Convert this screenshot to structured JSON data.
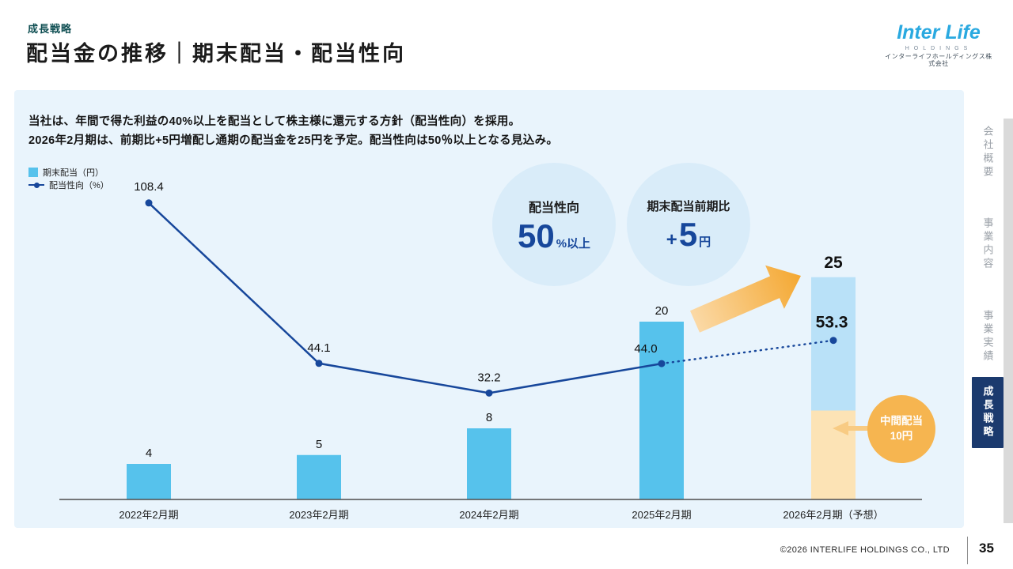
{
  "header": {
    "section_label": "成長戦略",
    "title": "配当金の推移｜期末配当・配当性向",
    "logo": {
      "wordmark": "Inter Life",
      "holdings": "HOLDINGS",
      "company": "インターライフホールディングス株式会社"
    }
  },
  "intro": {
    "line1": "当社は、年間で得た利益の40%以上を配当として株主様に還元する方針（配当性向）を採用。",
    "line2": "2026年2月期は、前期比+5円増配し通期の配当金を25円を予定。配当性向は50％以上となる見込み。"
  },
  "legend": {
    "bar_label": "期末配当（円）",
    "line_label": "配当性向（%）"
  },
  "chart_data": {
    "type": "bar",
    "categories": [
      "2022年2月期",
      "2023年2月期",
      "2024年2月期",
      "2025年2月期",
      "2026年2月期（予想）"
    ],
    "series": [
      {
        "name": "期末配当（円）",
        "type": "bar",
        "values": [
          4,
          5,
          8,
          20,
          25
        ]
      },
      {
        "name": "配当性向（%）",
        "type": "line",
        "values": [
          108.4,
          44.1,
          32.2,
          44.0,
          53.3
        ],
        "forecast_segment": "dotted between 2025 and 2026"
      }
    ],
    "bar_value_labels": [
      "4",
      "5",
      "8",
      "20",
      "25"
    ],
    "line_value_labels": [
      "108.4",
      "44.1",
      "32.2",
      "44.0",
      "53.3"
    ],
    "forecast": {
      "index": 4,
      "interim_dividend": 10,
      "year_end_dividend": 15
    },
    "xlabel": "",
    "ylabel": "",
    "grid": false,
    "legend_position": "top-left"
  },
  "callouts": {
    "payout": {
      "title": "配当性向",
      "value": "50",
      "suffix": "%以上"
    },
    "increase": {
      "title": "期末配当前期比",
      "plus": "+",
      "value": "5",
      "unit": "円"
    },
    "interim": {
      "line1": "中間配当",
      "line2": "10円"
    }
  },
  "sidebar": {
    "items": [
      {
        "label": "会社概要",
        "active": false
      },
      {
        "label": "事業内容",
        "active": false
      },
      {
        "label": "事業実績",
        "active": false
      },
      {
        "label": "成長戦略",
        "active": true
      }
    ]
  },
  "footer": {
    "copyright": "©2026 INTERLIFE HOLDINGS CO., LTD",
    "page": "35"
  },
  "colors": {
    "bar": "#56c2ec",
    "forecast_bar_top": "#b9e1f8",
    "forecast_bar_interim": "#fce3b5",
    "line": "#17479b",
    "panel_bg": "#e9f4fc",
    "bubble_bg": "#d9ecf9",
    "arrow_orange": "#f4a832",
    "arrow_orange_light": "#fbd9a6",
    "interim_badge": "#f6b550",
    "nav_active": "#1b3a6e",
    "brand_cyan": "#2aa9e0"
  }
}
